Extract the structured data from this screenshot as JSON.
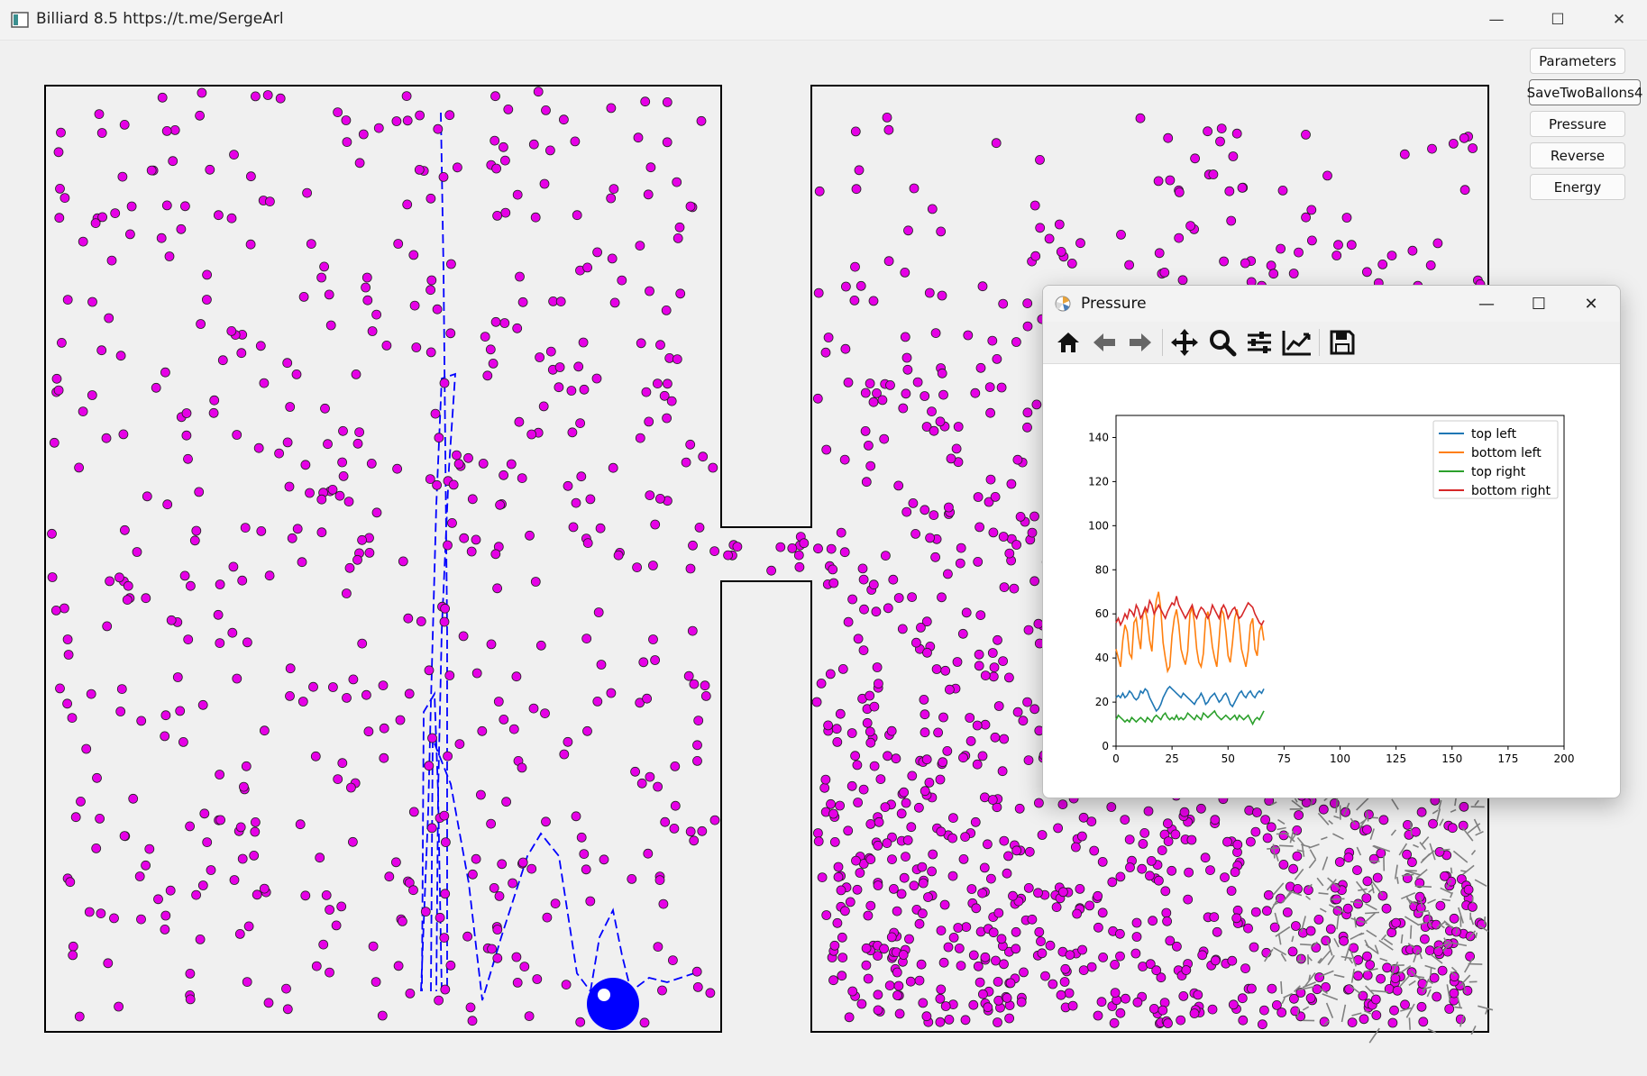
{
  "window": {
    "title": "Billiard 8.5  https://t.me/SergeArl",
    "minimize": "—",
    "maximize": "☐",
    "close": "✕"
  },
  "side_buttons": [
    "Parameters",
    "SaveTwoBallons4",
    "Pressure",
    "Reverse",
    "Energy"
  ],
  "colors": {
    "particle": "#e600e6",
    "big_ball": "#0000ff",
    "trail": "#0000ff",
    "velocity_vectors": "#808080",
    "walls": "#000000"
  },
  "pressure_window": {
    "title": "Pressure",
    "toolbar_icons": [
      "home-icon",
      "back-arrow-icon",
      "forward-arrow-icon",
      "pan-icon",
      "zoom-icon",
      "subplots-config-icon",
      "edit-axis-icon",
      "save-icon"
    ]
  },
  "chart_data": {
    "type": "line",
    "xlim": [
      0,
      200
    ],
    "ylim": [
      0,
      150
    ],
    "xticks": [
      0,
      25,
      50,
      75,
      100,
      125,
      150,
      175,
      200
    ],
    "yticks": [
      0,
      20,
      40,
      60,
      80,
      100,
      120,
      140
    ],
    "legend_position": "top-right",
    "x_step": 1,
    "series": [
      {
        "name": "top left",
        "color": "#1f77b4",
        "values": [
          22,
          23,
          22,
          24,
          22,
          23,
          25,
          24,
          22,
          21,
          22,
          25,
          24,
          26,
          25,
          22,
          20,
          18,
          16,
          17,
          19,
          22,
          24,
          26,
          27,
          26,
          25,
          24,
          23,
          22,
          24,
          23,
          22,
          21,
          20,
          19,
          21,
          22,
          24,
          22,
          19,
          20,
          22,
          23,
          24,
          22,
          20,
          21,
          23,
          24,
          22,
          19,
          18,
          20,
          22,
          24,
          25,
          23,
          22,
          24,
          25,
          23,
          22,
          24,
          25,
          24,
          26
        ]
      },
      {
        "name": "bottom left",
        "color": "#ff7f0e",
        "values": [
          44,
          40,
          36,
          48,
          55,
          52,
          42,
          40,
          56,
          58,
          50,
          44,
          60,
          62,
          57,
          48,
          43,
          58,
          66,
          70,
          62,
          47,
          40,
          34,
          36,
          50,
          58,
          62,
          55,
          44,
          40,
          37,
          43,
          60,
          63,
          56,
          44,
          38,
          36,
          42,
          58,
          61,
          54,
          45,
          40,
          36,
          48,
          62,
          60,
          52,
          41,
          38,
          47,
          58,
          62,
          55,
          44,
          40,
          36,
          43,
          55,
          58,
          44,
          41,
          52,
          55,
          48
        ]
      },
      {
        "name": "top right",
        "color": "#2ca02c",
        "values": [
          12,
          14,
          13,
          12,
          11,
          12,
          11,
          13,
          12,
          11,
          12,
          13,
          12,
          11,
          13,
          12,
          11,
          13,
          14,
          13,
          12,
          14,
          15,
          13,
          12,
          13,
          12,
          14,
          12,
          13,
          12,
          13,
          15,
          14,
          13,
          12,
          14,
          13,
          12,
          15,
          14,
          13,
          14,
          15,
          16,
          14,
          13,
          12,
          13,
          14,
          13,
          12,
          13,
          14,
          12,
          14,
          13,
          12,
          13,
          14,
          12,
          10,
          12,
          13,
          12,
          14,
          16
        ]
      },
      {
        "name": "bottom right",
        "color": "#d62728",
        "values": [
          56,
          58,
          55,
          57,
          60,
          58,
          62,
          61,
          59,
          64,
          62,
          58,
          60,
          63,
          61,
          66,
          64,
          60,
          62,
          64,
          62,
          60,
          58,
          61,
          63,
          65,
          64,
          68,
          64,
          62,
          60,
          58,
          60,
          62,
          64,
          60,
          58,
          61,
          63,
          62,
          60,
          58,
          60,
          64,
          62,
          60,
          58,
          62,
          64,
          62,
          58,
          60,
          62,
          63,
          60,
          58,
          59,
          61,
          63,
          65,
          64,
          63,
          60,
          58,
          56,
          55,
          57
        ]
      }
    ]
  }
}
